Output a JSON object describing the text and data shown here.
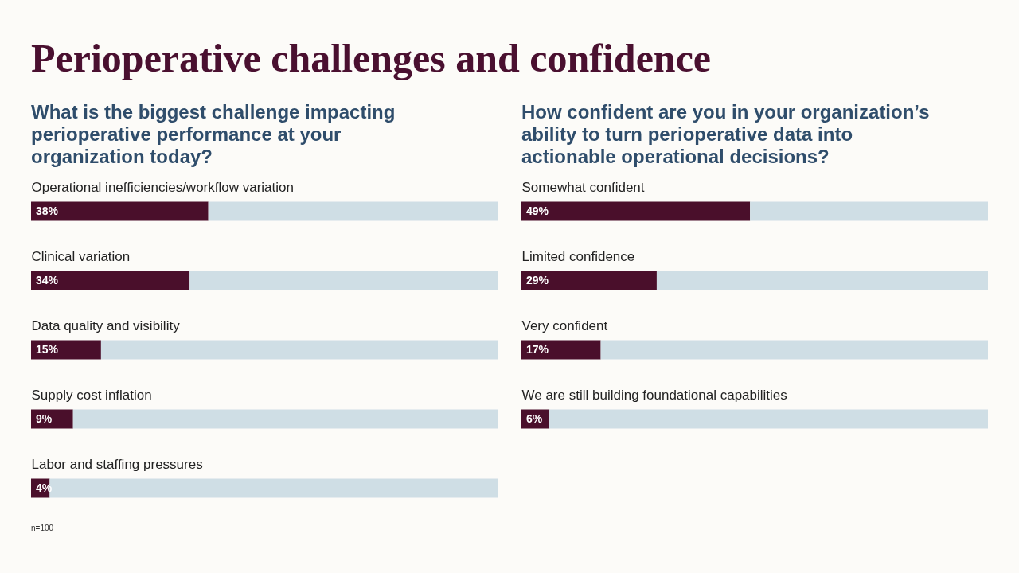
{
  "chart_data": [
    {
      "type": "bar",
      "orientation": "horizontal",
      "stacked": true,
      "title": "Perioperative challenges and confidence",
      "subtitle": "What is the biggest challenge impacting perioperative performance at your organization today?",
      "categories": [
        "Operational inefficiencies/workflow variation",
        "Clinical variation",
        "Data quality and visibility",
        "Supply cost inflation",
        "Labor and staffing pressures"
      ],
      "series": [
        {
          "color": "#4a0f2b",
          "values": [
            38,
            34,
            15,
            9,
            4
          ],
          "value_labels": [
            "38%",
            "34%",
            "15%",
            "9%",
            "4%"
          ]
        },
        {
          "color": "#cfdee5",
          "values": [
            62,
            66,
            85,
            91,
            96
          ]
        }
      ],
      "xlim": [
        0,
        100
      ],
      "tick_labels": "y",
      "annotations": [
        "n=100"
      ]
    },
    {
      "type": "bar",
      "orientation": "horizontal",
      "stacked": true,
      "subtitle": "How confident are you in your organization’s ability to turn perioperative data into actionable operational decisions?",
      "categories": [
        "Somewhat confident",
        "Limited confidence",
        "Very confident",
        "We are still building foundational capabilities"
      ],
      "series": [
        {
          "color": "#4a0f2b",
          "values": [
            49,
            29,
            17,
            6
          ],
          "value_labels": [
            "49%",
            "29%",
            "17%",
            "6%"
          ]
        },
        {
          "color": "#cfdee5",
          "values": [
            51,
            71,
            83,
            94
          ]
        }
      ],
      "xlim": [
        0,
        100
      ],
      "tick_labels": "y"
    }
  ]
}
